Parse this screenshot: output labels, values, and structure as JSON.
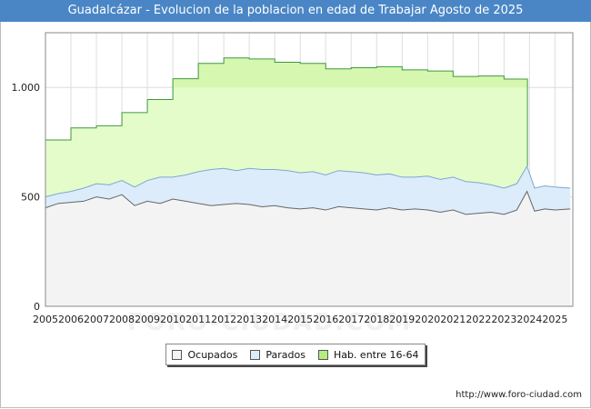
{
  "chart_data": {
    "type": "area",
    "title": "Guadalcázar - Evolucion de la poblacion en edad de Trabajar Agosto de 2025",
    "xlabel": "",
    "ylabel": "",
    "ylim": [
      0,
      1250
    ],
    "xlim": [
      2005,
      2025.7
    ],
    "x_ticks": [
      "2005",
      "2006",
      "2007",
      "2008",
      "2009",
      "2010",
      "2011",
      "2012",
      "2013",
      "2014",
      "2015",
      "2016",
      "2017",
      "2018",
      "2019",
      "2020",
      "2021",
      "2022",
      "2023",
      "2024",
      "2025"
    ],
    "y_ticks": [
      {
        "value": 0,
        "label": "0"
      },
      {
        "value": 500,
        "label": "500"
      },
      {
        "value": 1000,
        "label": "1.000"
      }
    ],
    "grid": true,
    "legend_position": "bottom-center",
    "colors": {
      "ocupados_fill": "#f3f3f3",
      "ocupados_line": "#666666",
      "parados_fill": "#dcecfb",
      "parados_line": "#7fa7cf",
      "hab_fill": "#e4fcc9",
      "hab_fill_dark": "#d6f7b0",
      "hab_line": "#3d9a3d",
      "title_bg": "#4a86c6"
    },
    "series": [
      {
        "name": "Hab. entre 16-64",
        "step": true,
        "x": [
          2005,
          2006,
          2007,
          2008,
          2009,
          2010,
          2011,
          2012,
          2013,
          2014,
          2015,
          2016,
          2017,
          2018,
          2019,
          2020,
          2021,
          2022,
          2023,
          2023.92
        ],
        "values": [
          760,
          815,
          825,
          885,
          945,
          1040,
          1110,
          1135,
          1130,
          1115,
          1110,
          1085,
          1090,
          1095,
          1080,
          1075,
          1050,
          1052,
          1038,
          1038
        ]
      },
      {
        "name": "Parados",
        "x": [
          2005,
          2005.5,
          2006,
          2006.5,
          2007,
          2007.5,
          2008,
          2008.5,
          2009,
          2009.5,
          2010,
          2010.5,
          2011,
          2011.5,
          2012,
          2012.5,
          2013,
          2013.5,
          2014,
          2014.5,
          2015,
          2015.5,
          2016,
          2016.5,
          2017,
          2017.5,
          2018,
          2018.5,
          2019,
          2019.5,
          2020,
          2020.5,
          2021,
          2021.5,
          2022,
          2022.5,
          2023,
          2023.5,
          2023.9,
          2024.2,
          2024.6,
          2025,
          2025.6
        ],
        "values": [
          500,
          515,
          525,
          540,
          560,
          555,
          575,
          545,
          575,
          590,
          590,
          600,
          615,
          625,
          630,
          620,
          630,
          625,
          625,
          620,
          610,
          615,
          600,
          620,
          615,
          610,
          600,
          605,
          590,
          590,
          595,
          580,
          590,
          570,
          565,
          555,
          540,
          560,
          640,
          540,
          550,
          545,
          540
        ]
      },
      {
        "name": "Ocupados",
        "x": [
          2005,
          2005.5,
          2006,
          2006.5,
          2007,
          2007.5,
          2008,
          2008.5,
          2009,
          2009.5,
          2010,
          2010.5,
          2011,
          2011.5,
          2012,
          2012.5,
          2013,
          2013.5,
          2014,
          2014.5,
          2015,
          2015.5,
          2016,
          2016.5,
          2017,
          2017.5,
          2018,
          2018.5,
          2019,
          2019.5,
          2020,
          2020.5,
          2021,
          2021.5,
          2022,
          2022.5,
          2023,
          2023.5,
          2023.9,
          2024.2,
          2024.6,
          2025,
          2025.6
        ],
        "values": [
          450,
          470,
          475,
          480,
          500,
          490,
          510,
          460,
          480,
          470,
          490,
          480,
          470,
          460,
          465,
          470,
          465,
          455,
          460,
          450,
          445,
          450,
          440,
          455,
          450,
          445,
          440,
          450,
          440,
          445,
          440,
          430,
          440,
          420,
          425,
          430,
          420,
          440,
          525,
          435,
          445,
          440,
          445
        ]
      }
    ]
  },
  "legend": {
    "items": [
      {
        "label": "Ocupados"
      },
      {
        "label": "Parados"
      },
      {
        "label": "Hab. entre 16-64"
      }
    ]
  },
  "footer": {
    "url": "http://www.foro-ciudad.com"
  },
  "watermark": "FORO-CIUDAD.COM"
}
